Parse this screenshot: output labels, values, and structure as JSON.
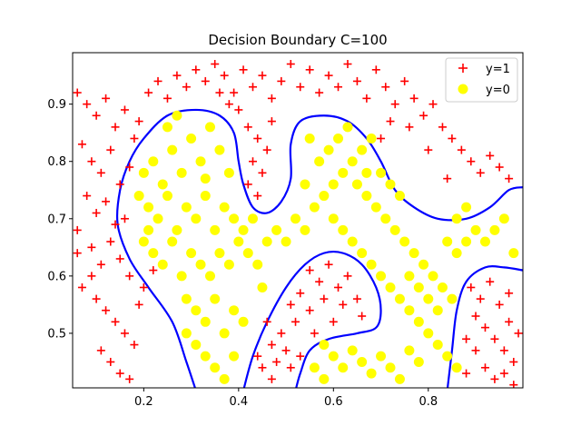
{
  "chart_data": {
    "type": "scatter",
    "title": "Decision Boundary C=100",
    "xlim": [
      0.05,
      0.9995
    ],
    "ylim": [
      0.40475,
      0.9898
    ],
    "xticks": [
      0.2,
      0.4,
      0.6,
      0.8
    ],
    "yticks": [
      0.5,
      0.6,
      0.7,
      0.8,
      0.9
    ],
    "legend_location": "top-right",
    "colors": {
      "positive": "#ff0000",
      "negative": "#ffff00",
      "boundary": "#0000ff"
    },
    "series": [
      {
        "name": "y=1",
        "marker": "plus",
        "color": "#ff0000",
        "points": [
          [
            0.06,
            0.92
          ],
          [
            0.08,
            0.9
          ],
          [
            0.1,
            0.88
          ],
          [
            0.12,
            0.91
          ],
          [
            0.14,
            0.86
          ],
          [
            0.16,
            0.89
          ],
          [
            0.18,
            0.84
          ],
          [
            0.07,
            0.83
          ],
          [
            0.09,
            0.8
          ],
          [
            0.11,
            0.78
          ],
          [
            0.13,
            0.82
          ],
          [
            0.15,
            0.76
          ],
          [
            0.08,
            0.74
          ],
          [
            0.1,
            0.71
          ],
          [
            0.12,
            0.73
          ],
          [
            0.14,
            0.69
          ],
          [
            0.06,
            0.68
          ],
          [
            0.09,
            0.65
          ],
          [
            0.11,
            0.62
          ],
          [
            0.13,
            0.66
          ],
          [
            0.15,
            0.63
          ],
          [
            0.17,
            0.6
          ],
          [
            0.07,
            0.58
          ],
          [
            0.1,
            0.56
          ],
          [
            0.12,
            0.54
          ],
          [
            0.14,
            0.52
          ],
          [
            0.16,
            0.5
          ],
          [
            0.18,
            0.48
          ],
          [
            0.11,
            0.47
          ],
          [
            0.13,
            0.45
          ],
          [
            0.15,
            0.43
          ],
          [
            0.17,
            0.42
          ],
          [
            0.19,
            0.55
          ],
          [
            0.2,
            0.58
          ],
          [
            0.22,
            0.61
          ],
          [
            0.09,
            0.6
          ],
          [
            0.06,
            0.64
          ],
          [
            0.16,
            0.7
          ],
          [
            0.17,
            0.79
          ],
          [
            0.19,
            0.87
          ],
          [
            0.21,
            0.92
          ],
          [
            0.23,
            0.94
          ],
          [
            0.25,
            0.91
          ],
          [
            0.27,
            0.95
          ],
          [
            0.29,
            0.93
          ],
          [
            0.31,
            0.96
          ],
          [
            0.33,
            0.94
          ],
          [
            0.35,
            0.97
          ],
          [
            0.37,
            0.95
          ],
          [
            0.39,
            0.92
          ],
          [
            0.41,
            0.96
          ],
          [
            0.43,
            0.93
          ],
          [
            0.45,
            0.95
          ],
          [
            0.47,
            0.91
          ],
          [
            0.49,
            0.94
          ],
          [
            0.51,
            0.97
          ],
          [
            0.53,
            0.93
          ],
          [
            0.55,
            0.96
          ],
          [
            0.57,
            0.92
          ],
          [
            0.59,
            0.95
          ],
          [
            0.61,
            0.93
          ],
          [
            0.63,
            0.97
          ],
          [
            0.65,
            0.94
          ],
          [
            0.67,
            0.91
          ],
          [
            0.69,
            0.96
          ],
          [
            0.71,
            0.93
          ],
          [
            0.73,
            0.9
          ],
          [
            0.75,
            0.94
          ],
          [
            0.77,
            0.91
          ],
          [
            0.79,
            0.88
          ],
          [
            0.81,
            0.9
          ],
          [
            0.83,
            0.86
          ],
          [
            0.85,
            0.84
          ],
          [
            0.87,
            0.82
          ],
          [
            0.89,
            0.8
          ],
          [
            0.91,
            0.78
          ],
          [
            0.93,
            0.81
          ],
          [
            0.95,
            0.79
          ],
          [
            0.97,
            0.77
          ],
          [
            0.84,
            0.77
          ],
          [
            0.8,
            0.82
          ],
          [
            0.76,
            0.86
          ],
          [
            0.72,
            0.87
          ],
          [
            0.7,
            0.84
          ],
          [
            0.4,
            0.89
          ],
          [
            0.42,
            0.86
          ],
          [
            0.44,
            0.84
          ],
          [
            0.46,
            0.82
          ],
          [
            0.43,
            0.8
          ],
          [
            0.45,
            0.78
          ],
          [
            0.42,
            0.76
          ],
          [
            0.44,
            0.74
          ],
          [
            0.47,
            0.87
          ],
          [
            0.38,
            0.9
          ],
          [
            0.36,
            0.92
          ],
          [
            0.55,
            0.61
          ],
          [
            0.57,
            0.59
          ],
          [
            0.59,
            0.62
          ],
          [
            0.61,
            0.58
          ],
          [
            0.63,
            0.6
          ],
          [
            0.53,
            0.57
          ],
          [
            0.51,
            0.55
          ],
          [
            0.55,
            0.54
          ],
          [
            0.58,
            0.56
          ],
          [
            0.62,
            0.55
          ],
          [
            0.65,
            0.56
          ],
          [
            0.66,
            0.53
          ],
          [
            0.6,
            0.52
          ],
          [
            0.56,
            0.5
          ],
          [
            0.52,
            0.52
          ],
          [
            0.49,
            0.5
          ],
          [
            0.47,
            0.48
          ],
          [
            0.5,
            0.47
          ],
          [
            0.48,
            0.45
          ],
          [
            0.45,
            0.44
          ],
          [
            0.47,
            0.42
          ],
          [
            0.51,
            0.44
          ],
          [
            0.53,
            0.46
          ],
          [
            0.44,
            0.46
          ],
          [
            0.46,
            0.52
          ],
          [
            0.89,
            0.58
          ],
          [
            0.91,
            0.56
          ],
          [
            0.93,
            0.59
          ],
          [
            0.95,
            0.55
          ],
          [
            0.97,
            0.57
          ],
          [
            0.9,
            0.53
          ],
          [
            0.92,
            0.51
          ],
          [
            0.94,
            0.49
          ],
          [
            0.96,
            0.47
          ],
          [
            0.98,
            0.45
          ],
          [
            0.88,
            0.49
          ],
          [
            0.9,
            0.47
          ],
          [
            0.92,
            0.44
          ],
          [
            0.94,
            0.42
          ],
          [
            0.96,
            0.43
          ],
          [
            0.98,
            0.41
          ],
          [
            0.88,
            0.43
          ],
          [
            0.97,
            0.52
          ],
          [
            0.99,
            0.5
          ]
        ]
      },
      {
        "name": "y=0",
        "marker": "circle",
        "color": "#ffff00",
        "points": [
          [
            0.2,
            0.78
          ],
          [
            0.22,
            0.8
          ],
          [
            0.24,
            0.76
          ],
          [
            0.26,
            0.82
          ],
          [
            0.28,
            0.78
          ],
          [
            0.3,
            0.84
          ],
          [
            0.32,
            0.8
          ],
          [
            0.34,
            0.86
          ],
          [
            0.36,
            0.82
          ],
          [
            0.38,
            0.78
          ],
          [
            0.21,
            0.72
          ],
          [
            0.23,
            0.7
          ],
          [
            0.25,
            0.74
          ],
          [
            0.27,
            0.68
          ],
          [
            0.29,
            0.72
          ],
          [
            0.31,
            0.7
          ],
          [
            0.33,
            0.74
          ],
          [
            0.35,
            0.68
          ],
          [
            0.37,
            0.72
          ],
          [
            0.39,
            0.7
          ],
          [
            0.41,
            0.68
          ],
          [
            0.43,
            0.7
          ],
          [
            0.2,
            0.66
          ],
          [
            0.22,
            0.64
          ],
          [
            0.24,
            0.62
          ],
          [
            0.26,
            0.66
          ],
          [
            0.28,
            0.6
          ],
          [
            0.3,
            0.64
          ],
          [
            0.32,
            0.62
          ],
          [
            0.34,
            0.6
          ],
          [
            0.36,
            0.64
          ],
          [
            0.38,
            0.62
          ],
          [
            0.4,
            0.66
          ],
          [
            0.42,
            0.64
          ],
          [
            0.44,
            0.62
          ],
          [
            0.46,
            0.66
          ],
          [
            0.48,
            0.68
          ],
          [
            0.5,
            0.66
          ],
          [
            0.52,
            0.7
          ],
          [
            0.54,
            0.68
          ],
          [
            0.29,
            0.56
          ],
          [
            0.31,
            0.54
          ],
          [
            0.33,
            0.52
          ],
          [
            0.35,
            0.56
          ],
          [
            0.37,
            0.5
          ],
          [
            0.39,
            0.54
          ],
          [
            0.41,
            0.52
          ],
          [
            0.31,
            0.48
          ],
          [
            0.33,
            0.46
          ],
          [
            0.35,
            0.44
          ],
          [
            0.37,
            0.42
          ],
          [
            0.39,
            0.46
          ],
          [
            0.29,
            0.5
          ],
          [
            0.56,
            0.72
          ],
          [
            0.58,
            0.74
          ],
          [
            0.6,
            0.76
          ],
          [
            0.62,
            0.78
          ],
          [
            0.64,
            0.8
          ],
          [
            0.66,
            0.82
          ],
          [
            0.68,
            0.84
          ],
          [
            0.57,
            0.8
          ],
          [
            0.59,
            0.82
          ],
          [
            0.61,
            0.84
          ],
          [
            0.63,
            0.86
          ],
          [
            0.65,
            0.76
          ],
          [
            0.67,
            0.74
          ],
          [
            0.69,
            0.72
          ],
          [
            0.71,
            0.7
          ],
          [
            0.73,
            0.68
          ],
          [
            0.75,
            0.66
          ],
          [
            0.77,
            0.64
          ],
          [
            0.79,
            0.62
          ],
          [
            0.81,
            0.6
          ],
          [
            0.83,
            0.58
          ],
          [
            0.85,
            0.56
          ],
          [
            0.7,
            0.78
          ],
          [
            0.72,
            0.76
          ],
          [
            0.74,
            0.74
          ],
          [
            0.6,
            0.7
          ],
          [
            0.62,
            0.68
          ],
          [
            0.64,
            0.66
          ],
          [
            0.66,
            0.64
          ],
          [
            0.68,
            0.62
          ],
          [
            0.7,
            0.6
          ],
          [
            0.72,
            0.58
          ],
          [
            0.74,
            0.56
          ],
          [
            0.76,
            0.54
          ],
          [
            0.78,
            0.52
          ],
          [
            0.8,
            0.5
          ],
          [
            0.82,
            0.48
          ],
          [
            0.84,
            0.46
          ],
          [
            0.86,
            0.44
          ],
          [
            0.76,
            0.6
          ],
          [
            0.78,
            0.58
          ],
          [
            0.8,
            0.56
          ],
          [
            0.82,
            0.54
          ],
          [
            0.84,
            0.66
          ],
          [
            0.86,
            0.64
          ],
          [
            0.88,
            0.66
          ],
          [
            0.9,
            0.68
          ],
          [
            0.92,
            0.66
          ],
          [
            0.94,
            0.68
          ],
          [
            0.96,
            0.7
          ],
          [
            0.98,
            0.64
          ],
          [
            0.86,
            0.7
          ],
          [
            0.88,
            0.72
          ],
          [
            0.58,
            0.48
          ],
          [
            0.6,
            0.46
          ],
          [
            0.62,
            0.44
          ],
          [
            0.64,
            0.47
          ],
          [
            0.66,
            0.45
          ],
          [
            0.68,
            0.43
          ],
          [
            0.7,
            0.46
          ],
          [
            0.72,
            0.44
          ],
          [
            0.74,
            0.42
          ],
          [
            0.56,
            0.44
          ],
          [
            0.58,
            0.42
          ],
          [
            0.76,
            0.47
          ],
          [
            0.78,
            0.45
          ],
          [
            0.54,
            0.76
          ],
          [
            0.55,
            0.84
          ],
          [
            0.67,
            0.78
          ],
          [
            0.19,
            0.74
          ],
          [
            0.21,
            0.68
          ],
          [
            0.25,
            0.86
          ],
          [
            0.27,
            0.88
          ],
          [
            0.33,
            0.77
          ],
          [
            0.45,
            0.58
          ]
        ]
      }
    ],
    "boundary_segments": [
      [
        [
          0.31,
          0.4
        ],
        [
          0.29,
          0.45
        ],
        [
          0.26,
          0.52
        ],
        [
          0.21,
          0.58
        ],
        [
          0.17,
          0.63
        ],
        [
          0.145,
          0.69
        ],
        [
          0.15,
          0.75
        ],
        [
          0.17,
          0.8
        ],
        [
          0.2,
          0.84
        ],
        [
          0.25,
          0.88
        ],
        [
          0.31,
          0.89
        ],
        [
          0.36,
          0.88
        ],
        [
          0.39,
          0.85
        ],
        [
          0.4,
          0.8
        ],
        [
          0.41,
          0.76
        ],
        [
          0.43,
          0.72
        ],
        [
          0.46,
          0.71
        ],
        [
          0.49,
          0.73
        ],
        [
          0.51,
          0.77
        ],
        [
          0.51,
          0.83
        ],
        [
          0.53,
          0.87
        ],
        [
          0.58,
          0.88
        ],
        [
          0.63,
          0.87
        ],
        [
          0.67,
          0.84
        ],
        [
          0.7,
          0.8
        ],
        [
          0.73,
          0.75
        ],
        [
          0.77,
          0.72
        ],
        [
          0.82,
          0.7
        ],
        [
          0.88,
          0.7
        ],
        [
          0.93,
          0.72
        ],
        [
          0.97,
          0.75
        ],
        [
          0.9995,
          0.755
        ]
      ],
      [
        [
          0.41,
          0.4
        ],
        [
          0.43,
          0.46
        ],
        [
          0.46,
          0.52
        ],
        [
          0.5,
          0.58
        ],
        [
          0.54,
          0.62
        ],
        [
          0.58,
          0.64
        ],
        [
          0.62,
          0.64
        ],
        [
          0.66,
          0.62
        ],
        [
          0.69,
          0.58
        ],
        [
          0.7,
          0.54
        ],
        [
          0.69,
          0.51
        ],
        [
          0.65,
          0.5
        ],
        [
          0.59,
          0.49
        ],
        [
          0.55,
          0.47
        ],
        [
          0.53,
          0.43
        ],
        [
          0.52,
          0.4
        ]
      ],
      [
        [
          0.84,
          0.4
        ],
        [
          0.85,
          0.47
        ],
        [
          0.86,
          0.54
        ],
        [
          0.88,
          0.59
        ],
        [
          0.92,
          0.615
        ],
        [
          0.96,
          0.615
        ],
        [
          0.9995,
          0.61
        ]
      ]
    ]
  }
}
